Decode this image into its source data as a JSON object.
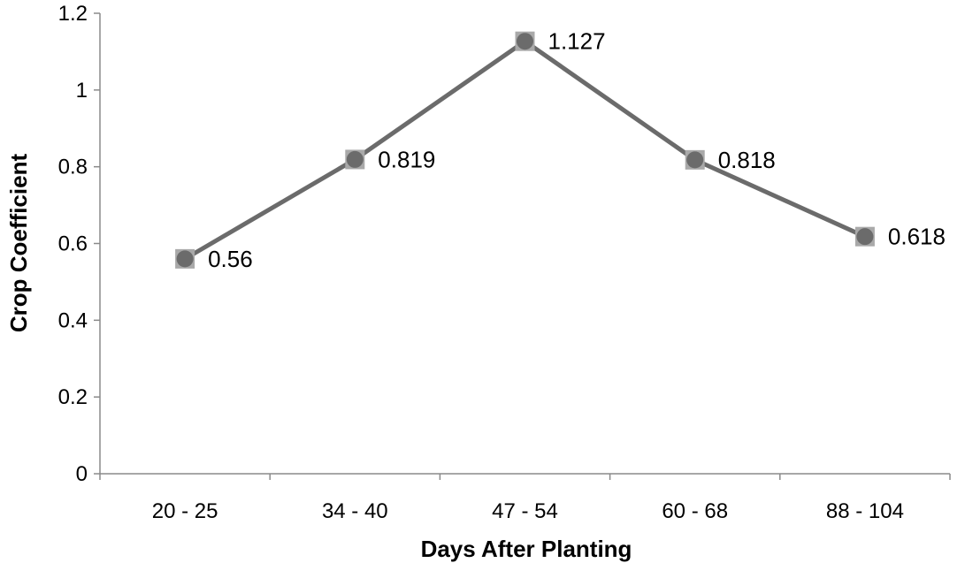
{
  "chart_data": {
    "type": "line",
    "title": "",
    "xlabel": "Days After Planting",
    "ylabel": "Crop Coefficient",
    "categories": [
      "20 - 25",
      "34 - 40",
      "47 - 54",
      "60 - 68",
      "88 - 104"
    ],
    "series": [
      {
        "values": [
          0.56,
          0.819,
          1.127,
          0.818,
          0.618
        ],
        "data_labels": [
          "0.56",
          "0.819",
          "1.127",
          "0.818",
          "0.618"
        ],
        "color": "#6b6b6b"
      }
    ],
    "ylim": [
      0,
      1.2
    ],
    "yticks": [
      0,
      0.2,
      0.4,
      0.6,
      0.8,
      1,
      1.2
    ],
    "ytick_labels": [
      "0",
      "0.2",
      "0.4",
      "0.6",
      "0.8",
      "1",
      "1.2"
    ],
    "grid": false,
    "legend": "none"
  }
}
